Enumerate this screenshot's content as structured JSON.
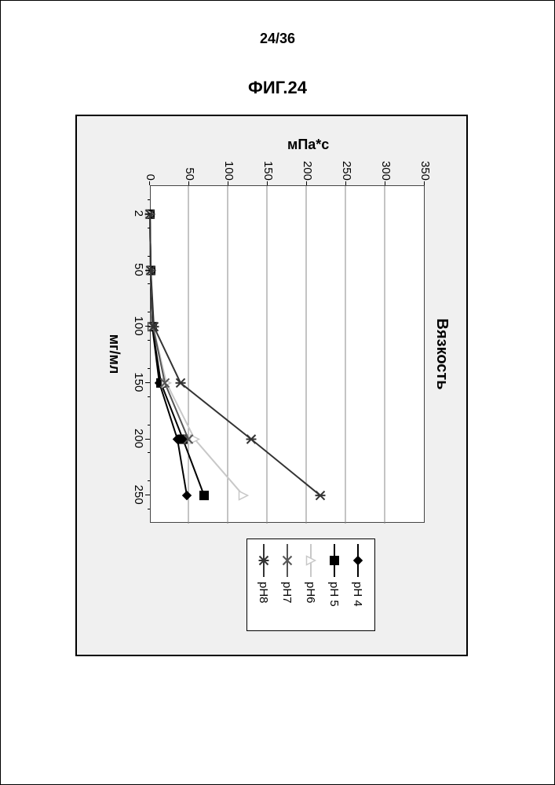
{
  "page_number_text": "24/36",
  "figure_label": "ФИГ.24",
  "chart": {
    "type": "line",
    "title": "Вязкость",
    "xlabel": "мг/мл",
    "ylabel": "мПа*с",
    "x_ticks": [
      2,
      50,
      100,
      150,
      200,
      250
    ],
    "x_tick_labels": [
      "2",
      "50",
      "100",
      "150",
      "200",
      "250"
    ],
    "y_ticks": [
      0,
      50,
      100,
      150,
      200,
      250,
      300,
      350
    ],
    "y_tick_labels": [
      "0",
      "50",
      "100",
      "150",
      "200",
      "250",
      "300",
      "350"
    ],
    "ylim": [
      0,
      350
    ],
    "background_color": "#f0f0f0",
    "plot_bg": "#ffffff",
    "grid_color": "#888888",
    "axis_color": "#444444",
    "text_color": "#000000",
    "label_fontsize": 18,
    "tick_fontsize": 15,
    "title_fontsize": 20,
    "line_width": 2,
    "series": [
      {
        "name": "pH 4",
        "marker": "diamond",
        "color": "#000000",
        "fill": "#000000",
        "x": [
          2,
          50,
          100,
          150,
          200,
          250
        ],
        "y": [
          1,
          2,
          4,
          13,
          36,
          48
        ]
      },
      {
        "name": "pH 5",
        "marker": "square",
        "color": "#000000",
        "fill": "#000000",
        "x": [
          2,
          50,
          100,
          150,
          200,
          250
        ],
        "y": [
          1,
          2,
          4,
          15,
          43,
          70
        ]
      },
      {
        "name": "pH6",
        "marker": "triangle",
        "color": "#c8c8c8",
        "fill": "#ffffff",
        "x": [
          2,
          50,
          100,
          150,
          200,
          250
        ],
        "y": [
          1,
          2,
          5,
          22,
          58,
          120
        ]
      },
      {
        "name": "pH7",
        "marker": "x",
        "color": "#555555",
        "fill": "#555555",
        "x": [
          2,
          50,
          100,
          150,
          200
        ],
        "y": [
          1,
          2,
          5,
          20,
          50
        ]
      },
      {
        "name": "pH8",
        "marker": "asterisk",
        "color": "#333333",
        "fill": "#333333",
        "x": [
          2,
          50,
          100,
          150,
          200,
          250
        ],
        "y": [
          1,
          2,
          6,
          40,
          130,
          218
        ]
      }
    ],
    "legend_labels": [
      "pH 4",
      "pH 5",
      "pH6",
      "pH7",
      "pH8"
    ]
  }
}
